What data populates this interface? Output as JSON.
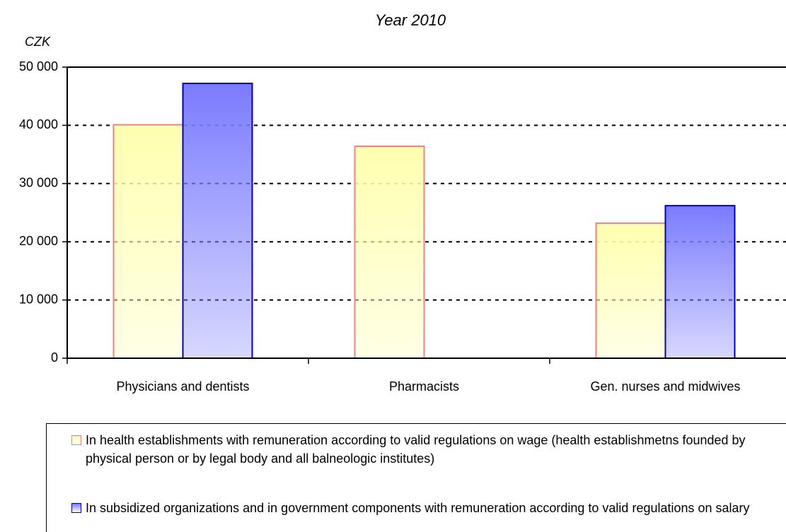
{
  "chart_data": {
    "type": "bar",
    "title": "Year 2010",
    "y_axis_label": "CZK",
    "categories": [
      "Physicians and dentists",
      "Pharmacists",
      "Gen. nurses and midwives"
    ],
    "series": [
      {
        "name": "In health establishments with remuneration according to valid regulations on wage (health establishmetns founded by physical person or by legal body and all balneologic institutes)",
        "color": "#ffffb0",
        "edge_color": "#f08080",
        "values": [
          40100,
          36400,
          23200
        ]
      },
      {
        "name": "In subsidized organizations and in government components with remuneration according to valid regulations on salary",
        "color": "#7b7bff",
        "edge_color": "#0000c0",
        "values": [
          47200,
          null,
          26200
        ]
      }
    ],
    "ylim": [
      0,
      50000
    ],
    "yticks": [
      {
        "value": 0,
        "label": "0"
      },
      {
        "value": 10000,
        "label": "10 000"
      },
      {
        "value": 20000,
        "label": "20 000"
      },
      {
        "value": 30000,
        "label": "30 000"
      },
      {
        "value": 40000,
        "label": "40 000"
      },
      {
        "value": 50000,
        "label": "50 000"
      }
    ],
    "grid": true
  }
}
